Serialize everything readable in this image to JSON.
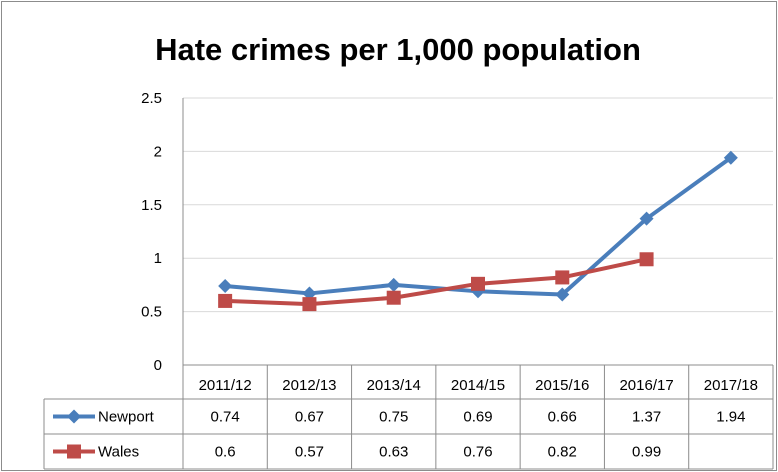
{
  "chart_data": {
    "type": "line",
    "title": "Hate crimes per 1,000 population",
    "categories": [
      "2011/12",
      "2012/13",
      "2013/14",
      "2014/15",
      "2015/16",
      "2016/17",
      "2017/18"
    ],
    "yticks": [
      "0",
      "0.5",
      "1",
      "1.5",
      "2",
      "2.5"
    ],
    "ylim": [
      0,
      2.5
    ],
    "grid": true,
    "legend": "data-table",
    "series": [
      {
        "name": "Newport",
        "color": "#4a7ebb",
        "marker": "diamond",
        "values": [
          0.74,
          0.67,
          0.75,
          0.69,
          0.66,
          1.37,
          1.94
        ],
        "labels": [
          "0.74",
          "0.67",
          "0.75",
          "0.69",
          "0.66",
          "1.37",
          "1.94"
        ]
      },
      {
        "name": "Wales",
        "color": "#be4b48",
        "marker": "square",
        "values": [
          0.6,
          0.57,
          0.63,
          0.76,
          0.82,
          0.99,
          null
        ],
        "labels": [
          "0.6",
          "0.57",
          "0.63",
          "0.76",
          "0.82",
          "0.99",
          ""
        ]
      }
    ]
  }
}
